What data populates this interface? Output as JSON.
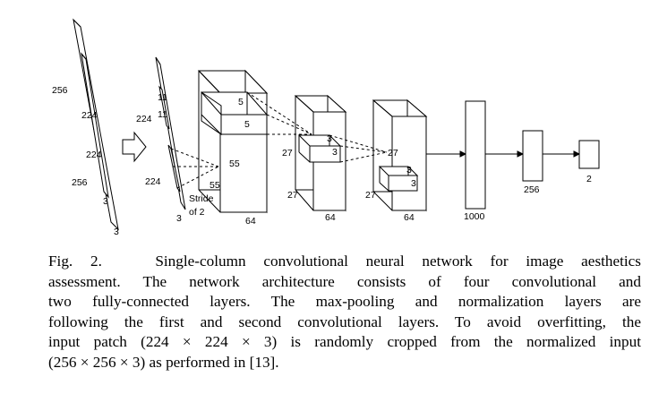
{
  "diagram": {
    "input": {
      "outer_size": "256",
      "outer_height": "256",
      "outer_depth": "3",
      "crop_width": "224",
      "crop_height": "224",
      "crop_depth": "3"
    },
    "conv1": {
      "width": "224",
      "height": "224",
      "depth": "3",
      "kernel_w": "11",
      "kernel_h": "11",
      "stride_line1": "Stride",
      "stride_line2": "of 2"
    },
    "conv2": {
      "height": "55",
      "depth_label": "55",
      "channels": "64",
      "kernel_w": "5",
      "kernel_h": "5"
    },
    "conv3": {
      "height": "27",
      "depth_label": "27",
      "channels": "64",
      "kernel_w": "3",
      "kernel_h": "3"
    },
    "conv4": {
      "height": "27",
      "depth_label": "27",
      "channels": "64",
      "kernel_w": "3",
      "kernel_h": "3"
    },
    "fc1": {
      "units": "1000"
    },
    "fc2": {
      "units": "256"
    },
    "output": {
      "units": "2"
    }
  },
  "caption": {
    "label": "Fig. 2.",
    "lines": [
      "Single-column convolutional neural network for image aesthetics",
      "assessment. The network architecture consists of four convolutional and",
      "two fully-connected layers. The max-pooling and normalization layers are",
      "following the first and second convolutional layers. To avoid overfitting, the",
      "input patch (224 × 224 × 3) is randomly cropped from the normalized input",
      "(256 × 256 × 3) as performed in [13]."
    ]
  }
}
